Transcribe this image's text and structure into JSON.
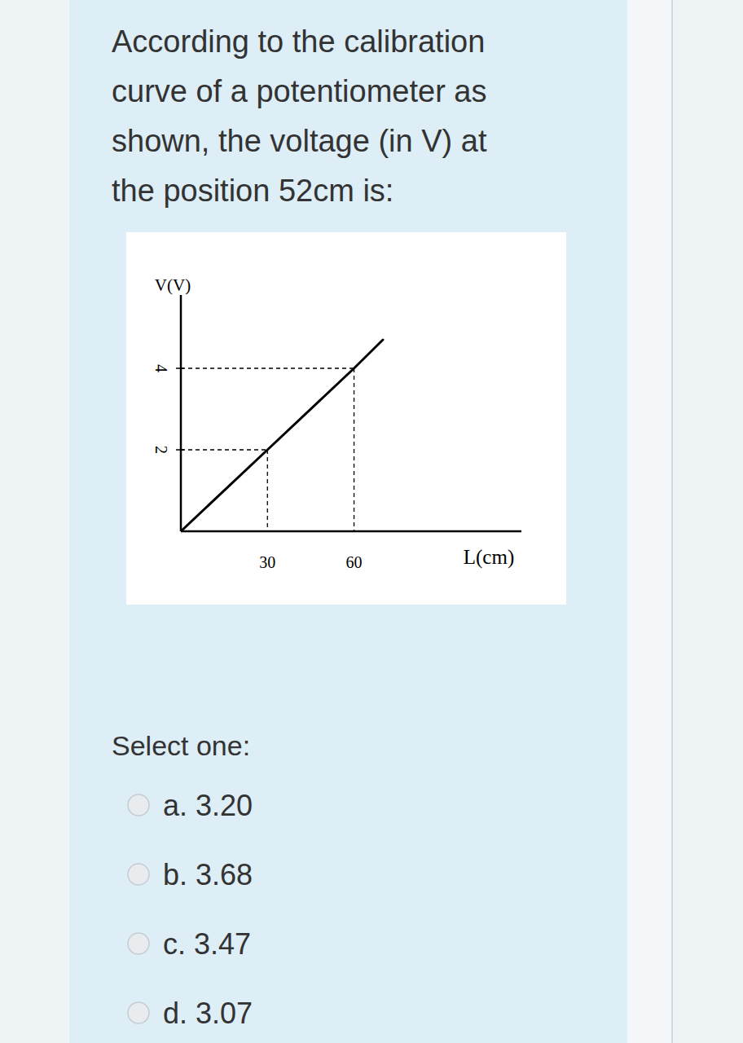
{
  "question": {
    "lines": [
      "According to the calibration",
      "curve of a potentiometer as",
      "shown, the voltage (in V) at",
      "the position 52cm  is:"
    ]
  },
  "chart_data": {
    "type": "line",
    "ylabel": "V(V)",
    "xlabel": "L(cm)",
    "x": [
      0,
      30,
      60,
      70
    ],
    "values": [
      0,
      2,
      4,
      4.7
    ],
    "color": "#000000",
    "xlim": [
      0,
      118
    ],
    "ylim": [
      0,
      5.8
    ],
    "xticks": [
      30,
      60
    ],
    "yticks": [
      2,
      4
    ],
    "grid": false
  },
  "answers": {
    "prompt": "Select one:",
    "options": [
      "a. 3.20",
      "b. 3.68",
      "c. 3.47",
      "d. 3.07"
    ]
  }
}
